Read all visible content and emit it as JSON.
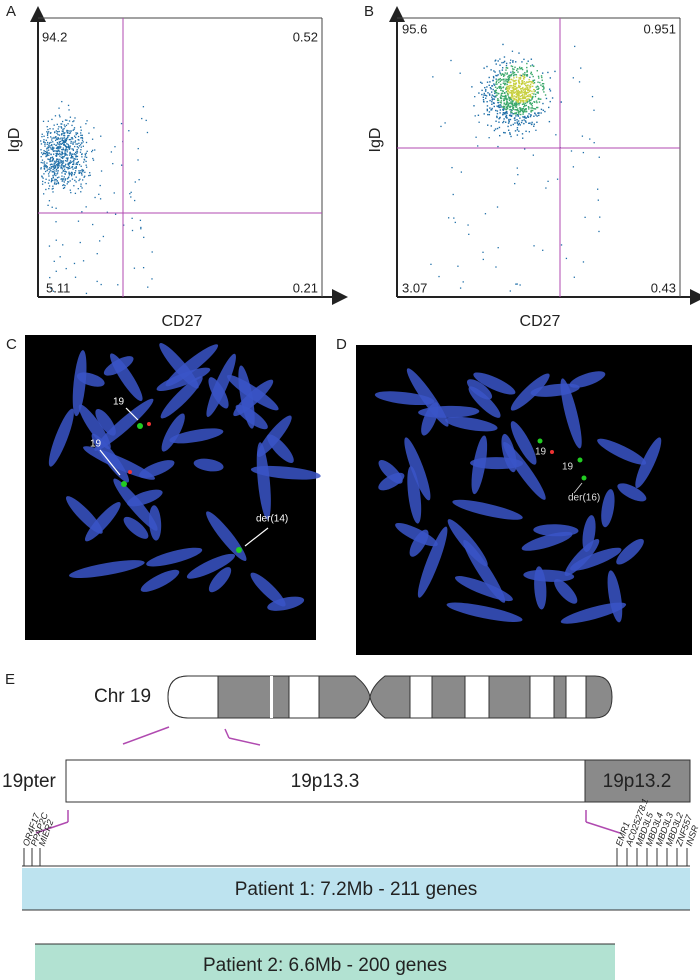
{
  "panels": [
    {
      "label": "A",
      "y_label": "IgD",
      "x_label": "CD27",
      "quadrants": [
        "94.2",
        "0.52",
        "5.11",
        "0.21"
      ]
    },
    {
      "label": "B",
      "y_label": "IgD",
      "x_label": "CD27",
      "quadrants": [
        "95.6",
        "0.951",
        "3.07",
        "0.43"
      ]
    },
    {
      "label": "C",
      "annotations": [
        "19",
        "19",
        "der(14)"
      ]
    },
    {
      "label": "D",
      "annotations": [
        "19",
        "19",
        "der(16)"
      ]
    }
  ],
  "map": {
    "label": "E",
    "chromosome": "Chr 19",
    "regions": [
      "19pter",
      "19p13.3",
      "19p13.2"
    ],
    "genes_left": [
      "OR4F17",
      "PPAP2C",
      "MIER2"
    ],
    "genes_right": [
      "EMR1",
      "AC025278.1",
      "MBD3L5",
      "MBD3L4",
      "MBD3L3",
      "MBD3L2",
      "ZNF557",
      "INSR"
    ],
    "patients": [
      "Patient 1:  7.2Mb - 211 genes",
      "Patient 2:  6.6Mb - 200 genes"
    ]
  }
}
